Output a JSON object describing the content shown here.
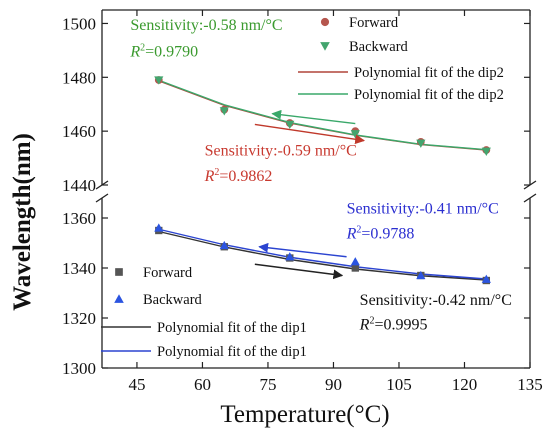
{
  "chart_data": {
    "type": "scatter",
    "xlabel": "Temperature(°C)",
    "ylabel": "Wavelength(nm)",
    "x_ticks": [
      "45",
      "60",
      "75",
      "90",
      "105",
      "120",
      "135"
    ],
    "x_range": [
      37,
      135
    ],
    "y_break": true,
    "upper_panel": {
      "ylim": [
        1440,
        1505
      ],
      "y_ticks": [
        "1440",
        "1460",
        "1480",
        "1500"
      ],
      "legend": [
        {
          "label": "Forward",
          "marker": "circle",
          "color": "#b5564e"
        },
        {
          "label": "Backward",
          "marker": "triangle-down",
          "color": "#43a56e"
        },
        {
          "label": "Polynomial fit of the dip2",
          "marker": "line",
          "color": "#b0453a"
        },
        {
          "label": "Polynomial fit of the dip2",
          "marker": "line",
          "color": "#3aa86a"
        }
      ],
      "series": [
        {
          "name": "Forward",
          "marker": "circle",
          "color": "#b5564e",
          "x": [
            50,
            65,
            80,
            95,
            110,
            125
          ],
          "y": [
            1479,
            1468,
            1463,
            1460,
            1456,
            1453
          ]
        },
        {
          "name": "Backward",
          "marker": "triangle-down",
          "color": "#43a56e",
          "x": [
            50,
            65,
            80,
            95,
            110,
            125
          ],
          "y": [
            1479,
            1467.5,
            1462.5,
            1459,
            1455.5,
            1452.5
          ]
        }
      ],
      "fits": [
        {
          "color": "#b0453a",
          "x": [
            50,
            65,
            80,
            95,
            110,
            125
          ],
          "y": [
            1478.7,
            1469.6,
            1463,
            1458.5,
            1455,
            1453
          ]
        },
        {
          "color": "#3aa86a",
          "x": [
            50,
            65,
            80,
            95,
            110,
            125
          ],
          "y": [
            1478.9,
            1469.8,
            1463.2,
            1458.6,
            1455.1,
            1453.1
          ]
        }
      ],
      "arrows": [
        {
          "color": "#3aa86a",
          "from": [
            95,
            1462.8
          ],
          "to": [
            76,
            1466.5
          ]
        },
        {
          "color": "#c0392b",
          "from": [
            72,
            1462.5
          ],
          "to": [
            97,
            1456.5
          ]
        }
      ],
      "annotations": [
        {
          "sensitivity": "Sensitivity:-0.58 nm/°C",
          "r2_value": "=0.9790",
          "color": "#3a9a2e",
          "x": 43.5,
          "y_top": 1497.5,
          "y_bot": 1487.8
        },
        {
          "sensitivity": "Sensitivity:-0.59 nm/°C",
          "r2_value": "=0.9862",
          "color": "#c8392f",
          "x": 60.5,
          "y_top": 1451,
          "y_bot": 1441.5
        }
      ]
    },
    "lower_panel": {
      "ylim": [
        1300,
        1368
      ],
      "y_ticks": [
        "1300",
        "1320",
        "1340",
        "1360"
      ],
      "legend": [
        {
          "label": "Forward",
          "marker": "square",
          "color": "#555555"
        },
        {
          "label": "Backward",
          "marker": "triangle-up",
          "color": "#2b54e0"
        },
        {
          "label": "Polynomial fit of the dip1",
          "marker": "line",
          "color": "#333333"
        },
        {
          "label": "Polynomial fit of the dip1",
          "marker": "line",
          "color": "#2b44d0"
        }
      ],
      "series": [
        {
          "name": "Forward",
          "marker": "square",
          "color": "#555555",
          "x": [
            50,
            65,
            80,
            95,
            110,
            125
          ],
          "y": [
            1355,
            1348.5,
            1344,
            1340,
            1337,
            1335
          ]
        },
        {
          "name": "Backward",
          "marker": "triangle-up",
          "color": "#2b54e0",
          "x": [
            50,
            65,
            80,
            95,
            110,
            125
          ],
          "y": [
            1356,
            1349,
            1344.5,
            1342.5,
            1337,
            1335.5
          ]
        }
      ],
      "fits": [
        {
          "color": "#333333",
          "x": [
            50,
            65,
            80,
            95,
            110,
            125
          ],
          "y": [
            1354.6,
            1348.4,
            1343.4,
            1339.6,
            1336.9,
            1335.2
          ]
        },
        {
          "color": "#2b44d0",
          "x": [
            50,
            65,
            80,
            95,
            110,
            125
          ],
          "y": [
            1355.5,
            1349.3,
            1344.3,
            1340.5,
            1337.6,
            1335.6
          ]
        }
      ],
      "arrows": [
        {
          "color": "#2b44d0",
          "from": [
            93,
            1344.5
          ],
          "to": [
            73,
            1348.5
          ]
        },
        {
          "color": "#222222",
          "from": [
            72,
            1341.5
          ],
          "to": [
            92,
            1337
          ]
        }
      ],
      "annotations": [
        {
          "sensitivity": "Sensitivity:-0.41 nm/°C",
          "r2_value": "=0.9788",
          "color": "#2b2fd0",
          "x": 93,
          "y_top": 1361.8,
          "y_bot": 1351.8
        },
        {
          "sensitivity": "Sensitivity:-0.42 nm/°C",
          "r2_value": "=0.9995",
          "color": "#111111",
          "x": 96,
          "y_top": 1325.3,
          "y_bot": 1315.5
        }
      ]
    }
  }
}
